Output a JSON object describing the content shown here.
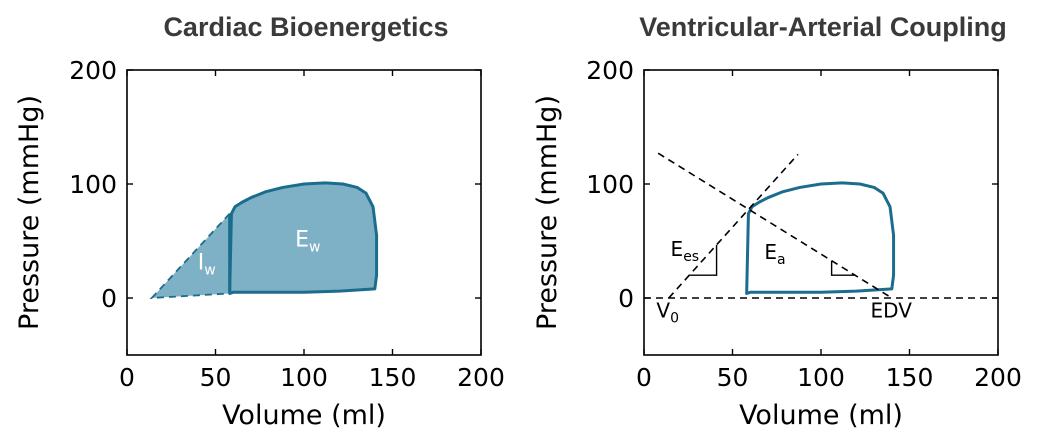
{
  "chart_data": [
    {
      "type": "line",
      "title": "Cardiac Bioenergetics",
      "xlabel": "Volume (ml)",
      "ylabel": "Pressure (mmHg)",
      "xlim": [
        0,
        200
      ],
      "ylim": [
        -50,
        200
      ],
      "xticks": [
        "0",
        "50",
        "100",
        "150",
        "200"
      ],
      "yticks": [
        "0",
        "100",
        "200"
      ],
      "grid": false,
      "colors": {
        "loop": "#1b6d8d",
        "ew_fill": "#7fb1c6",
        "iw_fill": "#7fb1c6",
        "dashed": "#1b6d8d"
      },
      "series": [
        {
          "role": "pv-loop",
          "x": [
            58,
            59,
            61,
            65,
            70,
            78,
            88,
            100,
            112,
            122,
            130,
            135,
            139,
            141,
            141,
            140,
            120,
            100,
            80,
            60,
            58
          ],
          "y": [
            4,
            74,
            80,
            84,
            88,
            93,
            97,
            100,
            101,
            100,
            97,
            92,
            80,
            55,
            20,
            8,
            6,
            5,
            5,
            5,
            4
          ]
        },
        {
          "role": "potential-energy-boundary",
          "x": [
            14,
            58,
            58,
            14
          ],
          "y": [
            0,
            4,
            74,
            0
          ]
        }
      ],
      "annotations": [
        {
          "text": "I",
          "sub": "w",
          "x": 40,
          "y": 25
        },
        {
          "text": "E",
          "sub": "w",
          "x": 95,
          "y": 45
        }
      ]
    },
    {
      "type": "line",
      "title": "Ventricular-Arterial Coupling",
      "xlabel": "Volume (ml)",
      "ylabel": "Pressure (mmHg)",
      "xlim": [
        0,
        200
      ],
      "ylim": [
        -50,
        200
      ],
      "xticks": [
        "0",
        "50",
        "100",
        "150",
        "200"
      ],
      "yticks": [
        "0",
        "100",
        "200"
      ],
      "grid": false,
      "colors": {
        "loop": "#1b6d8d",
        "dashed": "#000000"
      },
      "series": [
        {
          "role": "pv-loop",
          "x": [
            58,
            59,
            61,
            65,
            70,
            78,
            88,
            100,
            112,
            122,
            130,
            135,
            139,
            141,
            141,
            140,
            120,
            100,
            80,
            60,
            58
          ],
          "y": [
            4,
            74,
            80,
            84,
            88,
            93,
            97,
            100,
            101,
            100,
            97,
            92,
            80,
            55,
            20,
            8,
            6,
            5,
            5,
            5,
            4
          ]
        },
        {
          "role": "esp-line",
          "x": [
            14,
            87
          ],
          "y": [
            0,
            126
          ]
        },
        {
          "role": "ea-line",
          "x": [
            8,
            140
          ],
          "y": [
            127,
            0
          ]
        },
        {
          "role": "zero-line",
          "x": [
            0,
            200
          ],
          "y": [
            0,
            0
          ]
        }
      ],
      "annotations": [
        {
          "text": "E",
          "sub": "es",
          "x": 15,
          "y": 37
        },
        {
          "text": "E",
          "sub": "a",
          "x": 68,
          "y": 34
        },
        {
          "text": "V",
          "sub": "0",
          "x": 7,
          "y": -17
        },
        {
          "text": "EDV",
          "x": 128,
          "y": -17
        }
      ]
    }
  ]
}
